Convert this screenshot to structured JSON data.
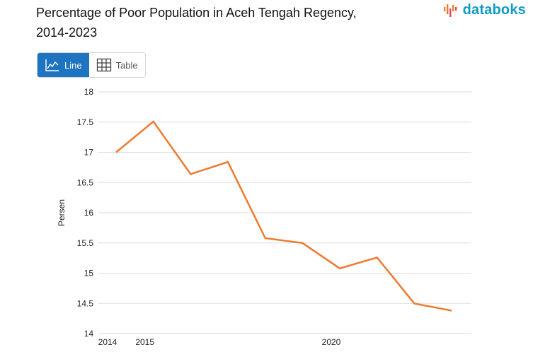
{
  "header": {
    "title_line1": "Percentage of Poor Population in Aceh Tengah Regency,",
    "title_line2": "2014-2023",
    "brand": "databoks"
  },
  "toggle": {
    "line_label": "Line",
    "table_label": "Table",
    "active": "line"
  },
  "colors": {
    "line": "#ee7a2f",
    "grid": "#dddddd",
    "active_button": "#1f74c2",
    "brand_text": "#0f9bc6"
  },
  "chart_data": {
    "type": "line",
    "title": "Percentage of Poor Population in Aceh Tengah Regency, 2014-2023",
    "xlabel": "",
    "ylabel": "Persen",
    "x": [
      2014,
      2015,
      2016,
      2017,
      2018,
      2019,
      2020,
      2021,
      2022,
      2023
    ],
    "series": [
      {
        "values": [
          17.0,
          17.51,
          16.64,
          16.84,
          15.58,
          15.5,
          15.08,
          15.26,
          14.5,
          14.38
        ]
      }
    ],
    "ylim": [
      14,
      18
    ],
    "yticks": [
      "14",
      "14.5",
      "15",
      "15.5",
      "16",
      "16.5",
      "17",
      "17.5",
      "18"
    ],
    "xticks": [
      "2014",
      "2015",
      "2020"
    ],
    "grid": true,
    "legend": "none"
  }
}
